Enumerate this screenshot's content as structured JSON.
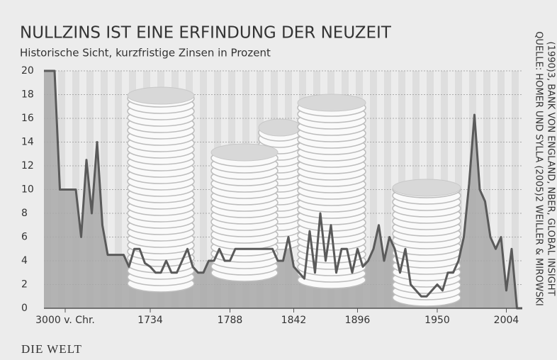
{
  "chart_data": {
    "type": "line",
    "title": "NULLZINS IST EINE ERFINDUNG DER NEUZEIT",
    "subtitle": "Historische Sicht, kurzfristige Zinsen in Prozent",
    "source": [
      "QUELLE: HOMER UND SYLLA (2005)2 WEILLER & MIROWSKI",
      "(1990)3, BANK VON ENGLAND, NBER, GLOBAL INSIGHT"
    ],
    "logo": "DIE WELT",
    "categories": [
      null,
      null,
      null,
      null,
      "3000 v. Chr.",
      null,
      null,
      null,
      null,
      null,
      null,
      null,
      null,
      null,
      null,
      null,
      null,
      null,
      null,
      null,
      "1734",
      null,
      null,
      null,
      null,
      null,
      null,
      null,
      null,
      null,
      null,
      null,
      null,
      null,
      null,
      "1788",
      null,
      null,
      null,
      null,
      null,
      null,
      null,
      null,
      null,
      null,
      null,
      "1842",
      null,
      null,
      null,
      null,
      null,
      null,
      null,
      null,
      null,
      null,
      null,
      "1896",
      null,
      null,
      null,
      null,
      null,
      null,
      null,
      null,
      null,
      null,
      null,
      null,
      null,
      null,
      "1950",
      null,
      null,
      null,
      null,
      null,
      null,
      null,
      null,
      null,
      null,
      null,
      null,
      "2004",
      null,
      null,
      null
    ],
    "values": [
      20,
      20,
      20,
      10,
      10,
      10,
      10,
      6,
      12.5,
      8,
      14,
      7,
      4.5,
      4.5,
      4.5,
      4.5,
      3.5,
      5,
      5,
      3.8,
      3.5,
      3,
      3,
      4,
      3,
      3,
      4,
      5,
      3.5,
      3,
      3,
      4,
      4,
      5,
      4,
      4,
      5,
      5,
      5,
      5,
      5,
      5,
      5,
      5,
      4,
      4,
      6,
      3.5,
      3,
      2.5,
      6.5,
      3,
      8,
      4,
      7,
      3,
      5,
      5,
      3,
      5,
      3.5,
      4,
      5,
      7,
      4,
      6,
      5,
      3,
      5,
      2,
      1.5,
      1,
      1,
      1.5,
      2,
      1.5,
      3,
      3,
      4,
      6,
      10.5,
      16.3,
      10,
      9,
      6,
      5,
      6,
      1.5,
      5,
      0,
      0
    ],
    "color": "#5a5a5a",
    "fill": "#a9a9a9",
    "ylim": [
      0,
      20
    ],
    "yticks": [
      0,
      2,
      4,
      6,
      8,
      10,
      12,
      14,
      16,
      18,
      20
    ],
    "grid": true
  }
}
